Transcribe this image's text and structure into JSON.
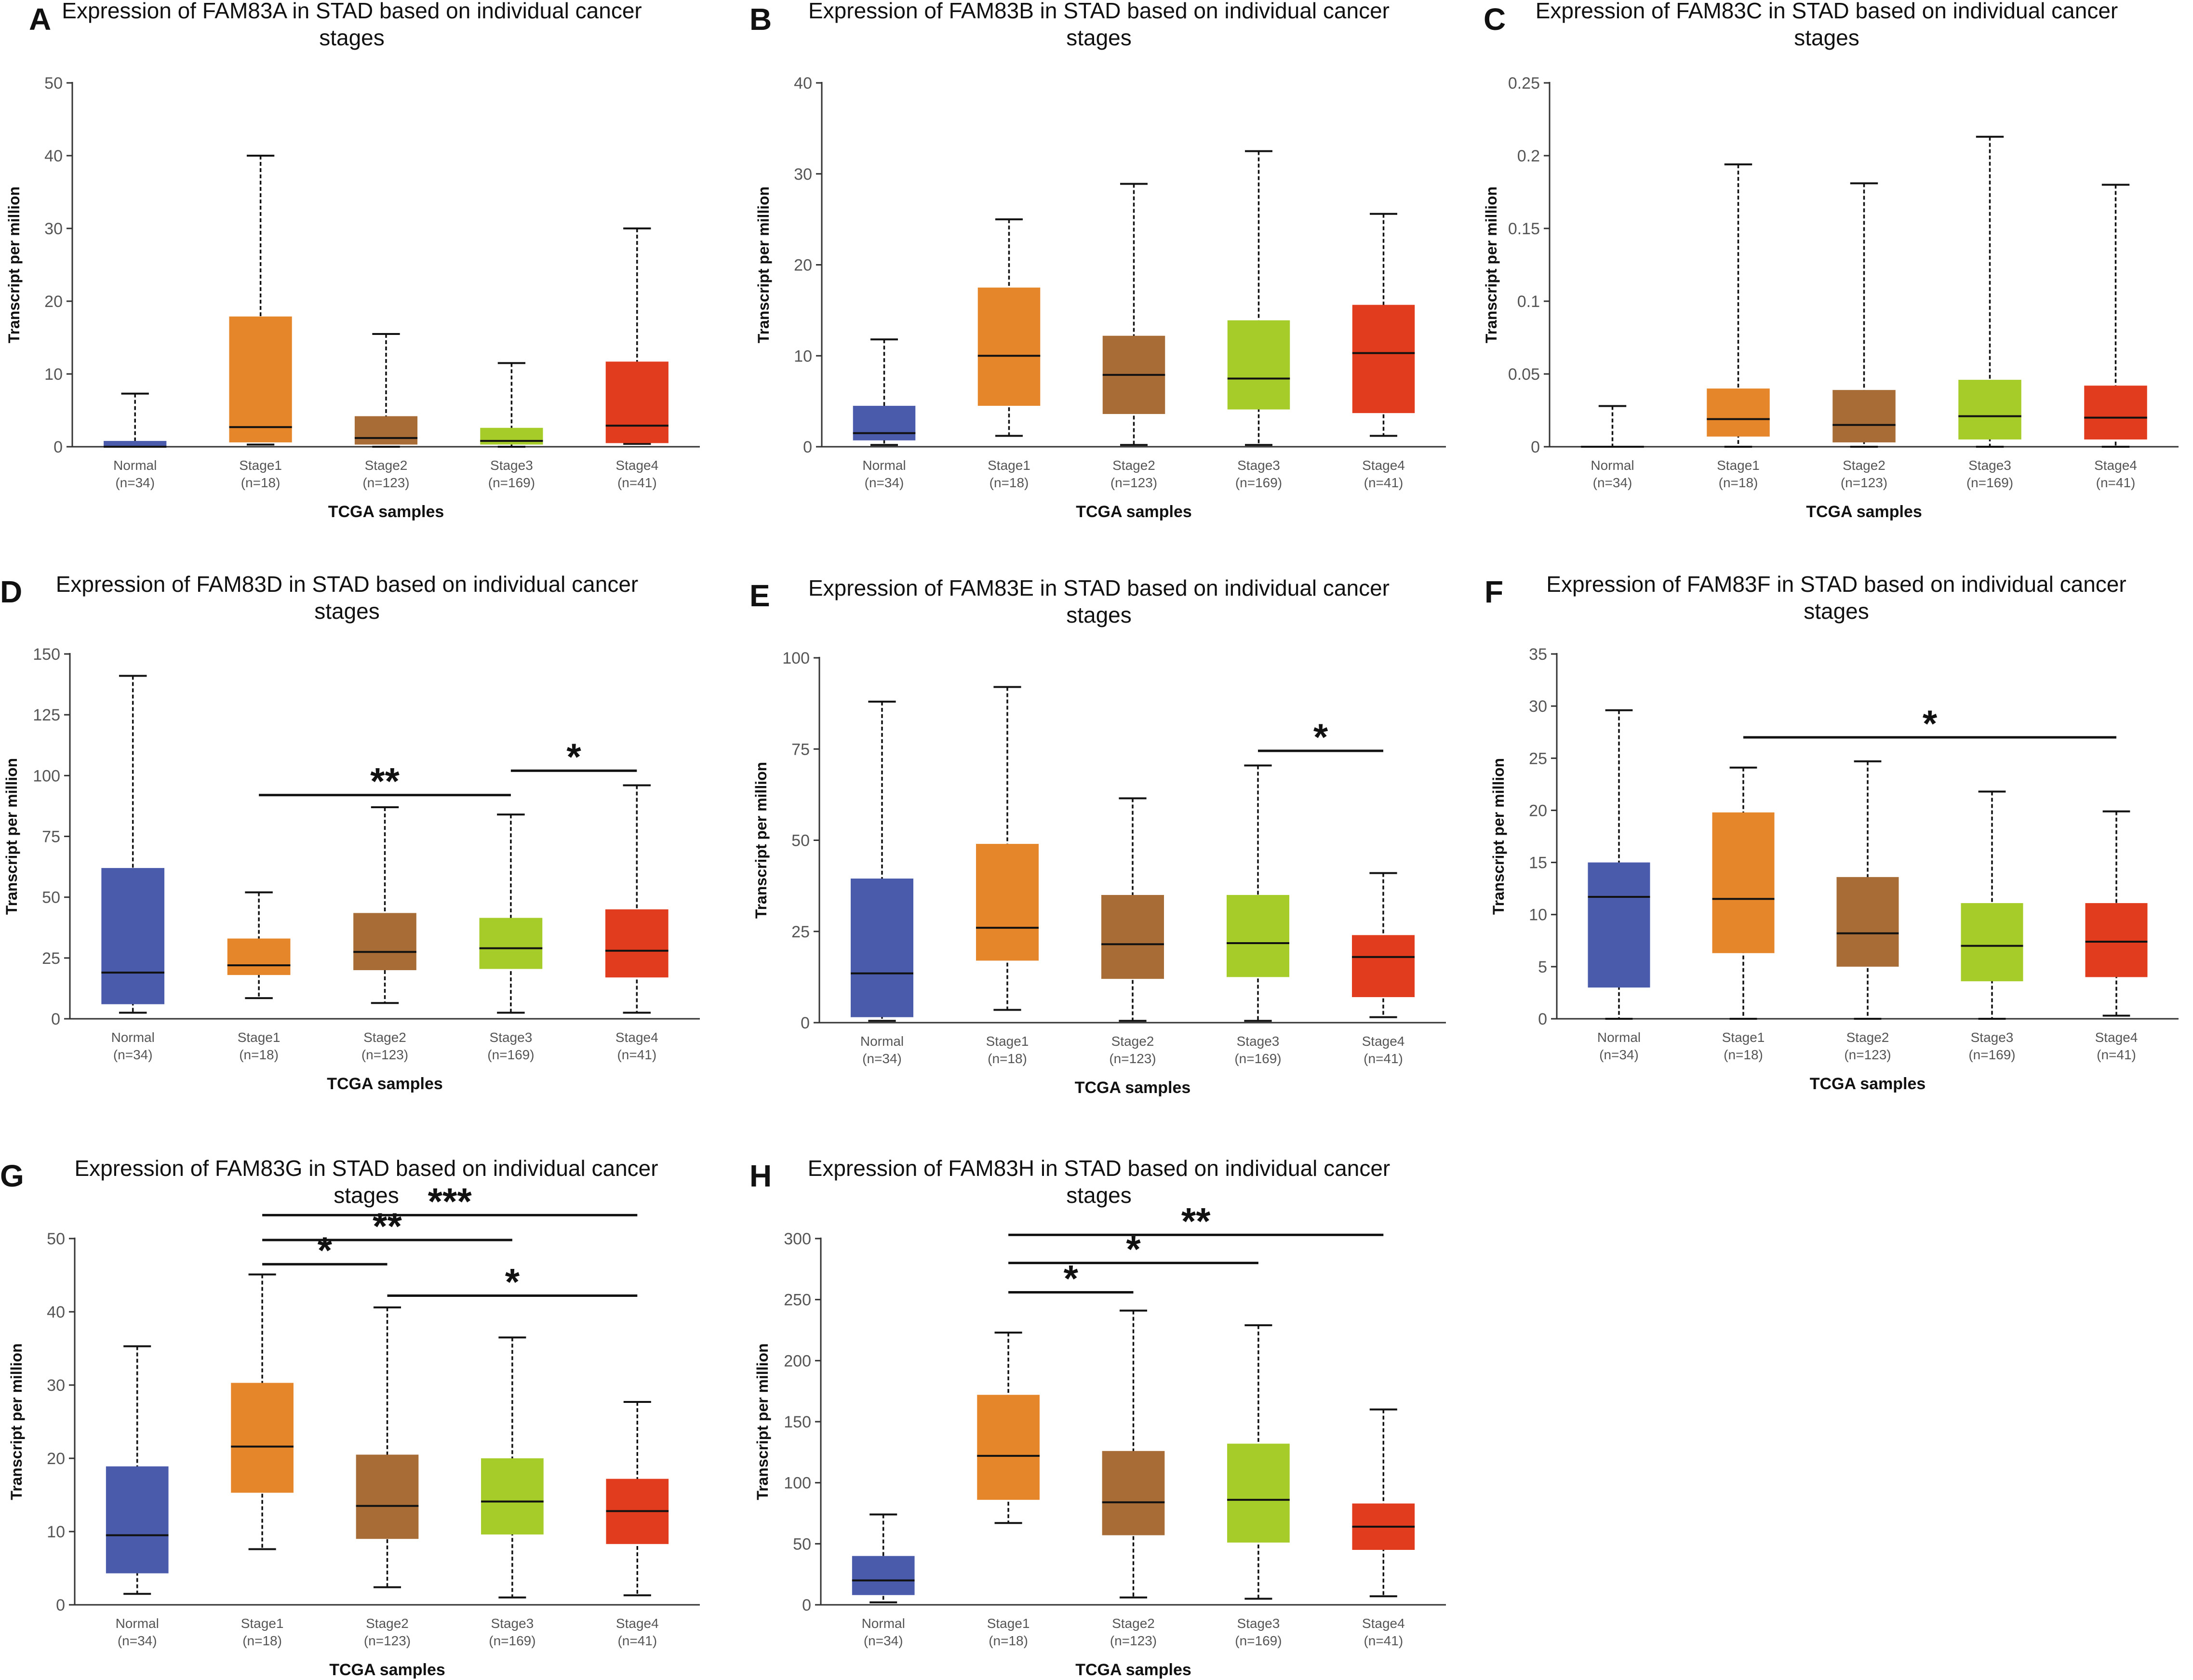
{
  "figure": {
    "colors": {
      "normal": "#4A5BAC",
      "stage1": "#E5862A",
      "stage2": "#A86C36",
      "stage3": "#A6CC2A",
      "stage4": "#E23C1E",
      "axis": "#333333",
      "text": "#111111",
      "tick_text": "#555555",
      "annotation": "#111111"
    }
  },
  "chart_data": [
    {
      "panel": "A",
      "type": "boxplot",
      "title": "Expression of FAM83A in STAD based on individual cancer stages",
      "xlabel": "TCGA samples",
      "ylabel": "Transcript per million",
      "ylim": [
        0,
        50
      ],
      "yticks": [
        0,
        10,
        20,
        30,
        40,
        50
      ],
      "categories": [
        {
          "name": "Normal",
          "n": "(n=34)",
          "color_key": "normal",
          "min": 0,
          "q1": 0,
          "median": 0,
          "q3": 0.8,
          "max": 7.3
        },
        {
          "name": "Stage1",
          "n": "(n=18)",
          "color_key": "stage1",
          "min": 0.3,
          "q1": 0.6,
          "median": 2.7,
          "q3": 17.9,
          "max": 40
        },
        {
          "name": "Stage2",
          "n": "(n=123)",
          "color_key": "stage2",
          "min": 0,
          "q1": 0.3,
          "median": 1.2,
          "q3": 4.2,
          "max": 15.5
        },
        {
          "name": "Stage3",
          "n": "(n=169)",
          "color_key": "stage3",
          "min": 0,
          "q1": 0.3,
          "median": 0.8,
          "q3": 2.6,
          "max": 11.5
        },
        {
          "name": "Stage4",
          "n": "(n=41)",
          "color_key": "stage4",
          "min": 0.4,
          "q1": 0.5,
          "median": 2.9,
          "q3": 11.7,
          "max": 30
        }
      ],
      "significance": []
    },
    {
      "panel": "B",
      "type": "boxplot",
      "title": "Expression of FAM83B in STAD based on individual cancer stages",
      "xlabel": "TCGA samples",
      "ylabel": "Transcript per million",
      "ylim": [
        0,
        40
      ],
      "yticks": [
        0,
        10,
        20,
        30,
        40
      ],
      "categories": [
        {
          "name": "Normal",
          "n": "(n=34)",
          "color_key": "normal",
          "min": 0.2,
          "q1": 0.7,
          "median": 1.5,
          "q3": 4.5,
          "max": 11.8
        },
        {
          "name": "Stage1",
          "n": "(n=18)",
          "color_key": "stage1",
          "min": 1.2,
          "q1": 4.5,
          "median": 10,
          "q3": 17.5,
          "max": 25
        },
        {
          "name": "Stage2",
          "n": "(n=123)",
          "color_key": "stage2",
          "min": 0.2,
          "q1": 3.6,
          "median": 7.9,
          "q3": 12.2,
          "max": 28.9
        },
        {
          "name": "Stage3",
          "n": "(n=169)",
          "color_key": "stage3",
          "min": 0.2,
          "q1": 4.1,
          "median": 7.5,
          "q3": 13.9,
          "max": 32.5
        },
        {
          "name": "Stage4",
          "n": "(n=41)",
          "color_key": "stage4",
          "min": 1.2,
          "q1": 3.7,
          "median": 10.3,
          "q3": 15.6,
          "max": 25.6
        }
      ],
      "significance": []
    },
    {
      "panel": "C",
      "type": "boxplot",
      "title": "Expression of FAM83C in STAD based on individual cancer stages",
      "xlabel": "TCGA samples",
      "ylabel": "Transcript per million",
      "ylim": [
        0,
        0.25
      ],
      "yticks": [
        0,
        0.05,
        0.1,
        0.15,
        0.2,
        0.25
      ],
      "categories": [
        {
          "name": "Normal",
          "n": "(n=34)",
          "color_key": "normal",
          "min": 0,
          "q1": 0,
          "median": 0,
          "q3": 0,
          "max": 0.028
        },
        {
          "name": "Stage1",
          "n": "(n=18)",
          "color_key": "stage1",
          "min": 0,
          "q1": 0.007,
          "median": 0.019,
          "q3": 0.04,
          "max": 0.194
        },
        {
          "name": "Stage2",
          "n": "(n=123)",
          "color_key": "stage2",
          "min": 0,
          "q1": 0.003,
          "median": 0.015,
          "q3": 0.039,
          "max": 0.181
        },
        {
          "name": "Stage3",
          "n": "(n=169)",
          "color_key": "stage3",
          "min": 0,
          "q1": 0.005,
          "median": 0.021,
          "q3": 0.046,
          "max": 0.213
        },
        {
          "name": "Stage4",
          "n": "(n=41)",
          "color_key": "stage4",
          "min": 0,
          "q1": 0.005,
          "median": 0.02,
          "q3": 0.042,
          "max": 0.18
        }
      ],
      "significance": []
    },
    {
      "panel": "D",
      "type": "boxplot",
      "title": "Expression of FAM83D in STAD based on individual cancer stages",
      "xlabel": "TCGA samples",
      "ylabel": "Transcript per million",
      "ylim": [
        0,
        150
      ],
      "yticks": [
        0,
        25,
        50,
        75,
        100,
        125,
        150
      ],
      "categories": [
        {
          "name": "Normal",
          "n": "(n=34)",
          "color_key": "normal",
          "min": 2.5,
          "q1": 6,
          "median": 19,
          "q3": 62,
          "max": 141
        },
        {
          "name": "Stage1",
          "n": "(n=18)",
          "color_key": "stage1",
          "min": 8.5,
          "q1": 18,
          "median": 22,
          "q3": 33,
          "max": 52
        },
        {
          "name": "Stage2",
          "n": "(n=123)",
          "color_key": "stage2",
          "min": 6.5,
          "q1": 20,
          "median": 27.5,
          "q3": 43.5,
          "max": 87
        },
        {
          "name": "Stage3",
          "n": "(n=169)",
          "color_key": "stage3",
          "min": 2.5,
          "q1": 20.5,
          "median": 29,
          "q3": 41.5,
          "max": 84
        },
        {
          "name": "Stage4",
          "n": "(n=41)",
          "color_key": "stage4",
          "min": 2.5,
          "q1": 17,
          "median": 28,
          "q3": 45,
          "max": 96
        }
      ],
      "significance": [
        {
          "from": "Stage1",
          "to": "Stage3",
          "y": 92,
          "label": "**"
        },
        {
          "from": "Stage3",
          "to": "Stage4",
          "y": 102,
          "label": "*"
        }
      ]
    },
    {
      "panel": "E",
      "type": "boxplot",
      "title": "Expression of FAM83E in STAD based on individual cancer stages",
      "xlabel": "TCGA samples",
      "ylabel": "Transcript per million",
      "ylim": [
        0,
        100
      ],
      "yticks": [
        0,
        25,
        50,
        75,
        100
      ],
      "categories": [
        {
          "name": "Normal",
          "n": "(n=34)",
          "color_key": "normal",
          "min": 0.5,
          "q1": 1.5,
          "median": 13.5,
          "q3": 39.5,
          "max": 88
        },
        {
          "name": "Stage1",
          "n": "(n=18)",
          "color_key": "stage1",
          "min": 3.5,
          "q1": 17,
          "median": 26,
          "q3": 49,
          "max": 92
        },
        {
          "name": "Stage2",
          "n": "(n=123)",
          "color_key": "stage2",
          "min": 0.5,
          "q1": 12,
          "median": 21.5,
          "q3": 35,
          "max": 61.5
        },
        {
          "name": "Stage3",
          "n": "(n=169)",
          "color_key": "stage3",
          "min": 0.5,
          "q1": 12.5,
          "median": 21.8,
          "q3": 35,
          "max": 70.5
        },
        {
          "name": "Stage4",
          "n": "(n=41)",
          "color_key": "stage4",
          "min": 1.5,
          "q1": 7,
          "median": 18,
          "q3": 24,
          "max": 41
        }
      ],
      "significance": [
        {
          "from": "Stage3",
          "to": "Stage4",
          "y": 74.5,
          "label": "*"
        }
      ]
    },
    {
      "panel": "F",
      "type": "boxplot",
      "title": "Expression of FAM83F in STAD based on individual cancer stages",
      "xlabel": "TCGA samples",
      "ylabel": "Transcript per million",
      "ylim": [
        0,
        35
      ],
      "yticks": [
        0,
        5,
        10,
        15,
        20,
        25,
        30,
        35
      ],
      "categories": [
        {
          "name": "Normal",
          "n": "(n=34)",
          "color_key": "normal",
          "min": 0,
          "q1": 3,
          "median": 11.7,
          "q3": 15,
          "max": 29.6
        },
        {
          "name": "Stage1",
          "n": "(n=18)",
          "color_key": "stage1",
          "min": 0,
          "q1": 6.3,
          "median": 11.5,
          "q3": 19.8,
          "max": 24.1
        },
        {
          "name": "Stage2",
          "n": "(n=123)",
          "color_key": "stage2",
          "min": 0,
          "q1": 5,
          "median": 8.2,
          "q3": 13.6,
          "max": 24.7
        },
        {
          "name": "Stage3",
          "n": "(n=169)",
          "color_key": "stage3",
          "min": 0,
          "q1": 3.6,
          "median": 7,
          "q3": 11.1,
          "max": 21.8
        },
        {
          "name": "Stage4",
          "n": "(n=41)",
          "color_key": "stage4",
          "min": 0.3,
          "q1": 4,
          "median": 7.4,
          "q3": 11.1,
          "max": 19.9
        }
      ],
      "significance": [
        {
          "from": "Stage1",
          "to": "Stage4",
          "y": 27,
          "label": "*"
        }
      ]
    },
    {
      "panel": "G",
      "type": "boxplot",
      "title": "Expression of FAM83G in STAD based on individual cancer stages",
      "xlabel": "TCGA samples",
      "ylabel": "Transcript per million",
      "ylim": [
        0,
        50
      ],
      "yticks": [
        0,
        10,
        20,
        30,
        40,
        50
      ],
      "categories": [
        {
          "name": "Normal",
          "n": "(n=34)",
          "color_key": "normal",
          "min": 1.5,
          "q1": 4.3,
          "median": 9.5,
          "q3": 18.9,
          "max": 35.3
        },
        {
          "name": "Stage1",
          "n": "(n=18)",
          "color_key": "stage1",
          "min": 7.6,
          "q1": 15.3,
          "median": 21.6,
          "q3": 30.3,
          "max": 45.1
        },
        {
          "name": "Stage2",
          "n": "(n=123)",
          "color_key": "stage2",
          "min": 2.4,
          "q1": 9,
          "median": 13.5,
          "q3": 20.5,
          "max": 40.6
        },
        {
          "name": "Stage3",
          "n": "(n=169)",
          "color_key": "stage3",
          "min": 1,
          "q1": 9.6,
          "median": 14.1,
          "q3": 20,
          "max": 36.5
        },
        {
          "name": "Stage4",
          "n": "(n=41)",
          "color_key": "stage4",
          "min": 1.3,
          "q1": 8.3,
          "median": 12.8,
          "q3": 17.2,
          "max": 27.7
        }
      ],
      "significance": [
        {
          "from": "Stage1",
          "to": "Stage2",
          "y": 46.5,
          "label": "*"
        },
        {
          "from": "Stage2",
          "to": "Stage4",
          "y": 42.2,
          "label": "*"
        },
        {
          "from": "Stage1",
          "to": "Stage3",
          "y": 49.8,
          "label": "**"
        },
        {
          "from": "Stage1",
          "to": "Stage4",
          "y": 53.2,
          "label": "***"
        }
      ]
    },
    {
      "panel": "H",
      "type": "boxplot",
      "title": "Expression of FAM83H in STAD based on individual cancer stages",
      "xlabel": "TCGA samples",
      "ylabel": "Transcript per million",
      "ylim": [
        0,
        300
      ],
      "yticks": [
        0,
        50,
        100,
        150,
        200,
        250,
        300
      ],
      "categories": [
        {
          "name": "Normal",
          "n": "(n=34)",
          "color_key": "normal",
          "min": 2,
          "q1": 8,
          "median": 20,
          "q3": 40,
          "max": 74
        },
        {
          "name": "Stage1",
          "n": "(n=18)",
          "color_key": "stage1",
          "min": 67,
          "q1": 86,
          "median": 122,
          "q3": 172,
          "max": 223
        },
        {
          "name": "Stage2",
          "n": "(n=123)",
          "color_key": "stage2",
          "min": 6,
          "q1": 57,
          "median": 84,
          "q3": 126,
          "max": 241
        },
        {
          "name": "Stage3",
          "n": "(n=169)",
          "color_key": "stage3",
          "min": 5,
          "q1": 51,
          "median": 86,
          "q3": 132,
          "max": 229
        },
        {
          "name": "Stage4",
          "n": "(n=41)",
          "color_key": "stage4",
          "min": 7,
          "q1": 45,
          "median": 64,
          "q3": 83,
          "max": 160
        }
      ],
      "significance": [
        {
          "from": "Stage1",
          "to": "Stage2",
          "y": 256,
          "label": "*"
        },
        {
          "from": "Stage1",
          "to": "Stage3",
          "y": 280,
          "label": "*"
        },
        {
          "from": "Stage1",
          "to": "Stage4",
          "y": 303,
          "label": "**"
        }
      ]
    }
  ]
}
